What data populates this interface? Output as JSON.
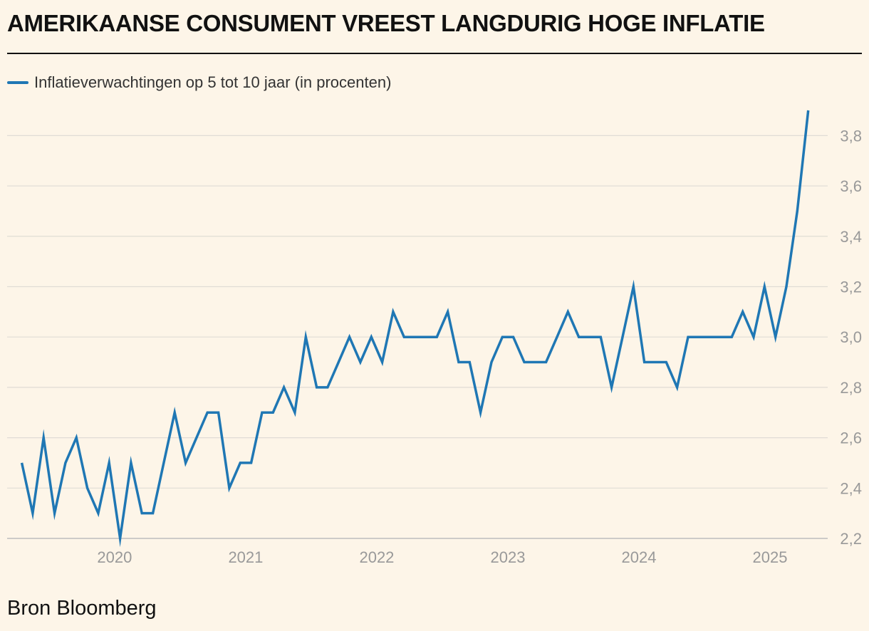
{
  "header": {
    "title": "AMERIKAANSE CONSUMENT VREEST LANGDURIG HOGE INFLATIE"
  },
  "legend": {
    "label": "Inflatieverwachtingen op 5 tot 10 jaar (in procenten)"
  },
  "footer": {
    "source": "Bron Bloomberg"
  },
  "chart_data": {
    "type": "line",
    "title": "AMERIKAANSE CONSUMENT VREEST LANGDURIG HOGE INFLATIE",
    "xlabel": "",
    "ylabel": "",
    "x_start": 2019.2917,
    "x_step": 0.08333,
    "xlim": [
      2019.18,
      2025.44
    ],
    "ylim": [
      2.2,
      3.9
    ],
    "grid": true,
    "legend_position": "top-left",
    "x_ticks": [
      2020,
      2021,
      2022,
      2023,
      2024,
      2025
    ],
    "x_tick_labels": [
      "2020",
      "2021",
      "2022",
      "2023",
      "2024",
      "2025"
    ],
    "y_ticks": [
      2.2,
      2.4,
      2.6,
      2.8,
      3.0,
      3.2,
      3.4,
      3.6,
      3.8
    ],
    "y_tick_labels": [
      "2,2",
      "2,4",
      "2,6",
      "2,8",
      "3,0",
      "3,2",
      "3,4",
      "3,6",
      "3,8"
    ],
    "series": [
      {
        "name": "Inflatieverwachtingen op 5 tot 10 jaar (in procenten)",
        "color": "#1f77b4",
        "values": [
          2.5,
          2.3,
          2.6,
          2.3,
          2.5,
          2.6,
          2.4,
          2.3,
          2.5,
          2.2,
          2.5,
          2.3,
          2.3,
          2.5,
          2.7,
          2.5,
          2.6,
          2.7,
          2.7,
          2.4,
          2.5,
          2.5,
          2.7,
          2.7,
          2.8,
          2.7,
          3.0,
          2.8,
          2.8,
          2.9,
          3.0,
          2.9,
          3.0,
          2.9,
          3.1,
          3.0,
          3.0,
          3.0,
          3.0,
          3.1,
          2.9,
          2.9,
          2.7,
          2.9,
          3.0,
          3.0,
          2.9,
          2.9,
          2.9,
          3.0,
          3.1,
          3.0,
          3.0,
          3.0,
          2.8,
          3.0,
          3.2,
          2.9,
          2.9,
          2.9,
          2.8,
          3.0,
          3.0,
          3.0,
          3.0,
          3.0,
          3.1,
          3.0,
          3.2,
          3.0,
          3.2,
          3.5,
          3.9
        ]
      }
    ]
  }
}
